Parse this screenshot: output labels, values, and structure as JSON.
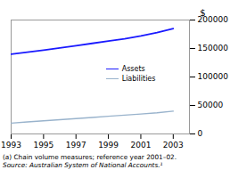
{
  "chart_data": {
    "type": "line",
    "x": [
      1993,
      1994,
      1995,
      1996,
      1997,
      1998,
      1999,
      2000,
      2001,
      2002,
      2003
    ],
    "series": [
      {
        "name": "Assets",
        "color": "#1a1aff",
        "values": [
          140000,
          143500,
          147000,
          151000,
          155000,
          159000,
          163000,
          167000,
          172000,
          178000,
          185000
        ]
      },
      {
        "name": "Liabilities",
        "color": "#99b3cc",
        "values": [
          19000,
          21000,
          23000,
          25000,
          27000,
          29000,
          31000,
          33000,
          35000,
          37000,
          40000
        ]
      }
    ],
    "xlim": [
      1993,
      2004
    ],
    "xticks": [
      1993,
      1995,
      1997,
      1999,
      2001,
      2003
    ],
    "ylim": [
      0,
      200000
    ],
    "yticks": [
      0,
      50000,
      100000,
      150000,
      200000
    ],
    "ylabel": "$",
    "annotations": [
      "(a) Chain volume measures; reference year 2001–02.",
      "Source: Australian System of National Accounts.¹"
    ],
    "legend": "center",
    "grid": false
  }
}
